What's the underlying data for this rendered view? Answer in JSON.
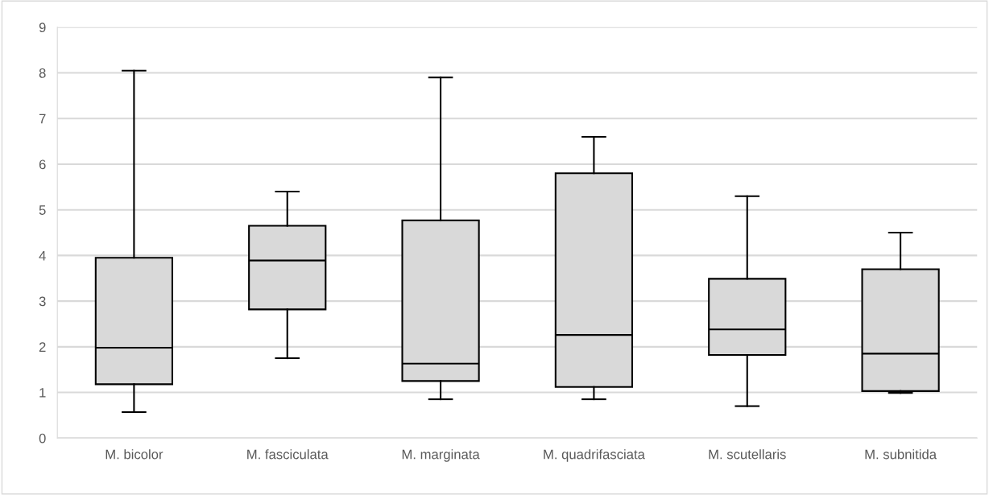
{
  "chart_data": {
    "type": "box",
    "categories": [
      "M. bicolor",
      "M. fasciculata",
      "M. marginata",
      "M. quadrifasciata",
      "M. scutellaris",
      "M. subnitida"
    ],
    "boxes": [
      {
        "low": 0.57,
        "q1": 1.18,
        "median": 1.98,
        "q3": 3.95,
        "high": 8.05
      },
      {
        "low": 1.75,
        "q1": 2.82,
        "median": 3.89,
        "q3": 4.65,
        "high": 5.4
      },
      {
        "low": 0.85,
        "q1": 1.25,
        "median": 1.63,
        "q3": 4.77,
        "high": 7.9
      },
      {
        "low": 0.85,
        "q1": 1.12,
        "median": 2.26,
        "q3": 5.8,
        "high": 6.6
      },
      {
        "low": 0.7,
        "q1": 1.82,
        "median": 2.38,
        "q3": 3.49,
        "high": 5.3
      },
      {
        "low": 0.99,
        "q1": 1.03,
        "median": 1.85,
        "q3": 3.7,
        "high": 4.5
      }
    ],
    "color": "#d9d9d9",
    "ylim": [
      0,
      9
    ],
    "yticks": [
      0,
      1,
      2,
      3,
      4,
      5,
      6,
      7,
      8,
      9
    ],
    "grid": "y"
  }
}
